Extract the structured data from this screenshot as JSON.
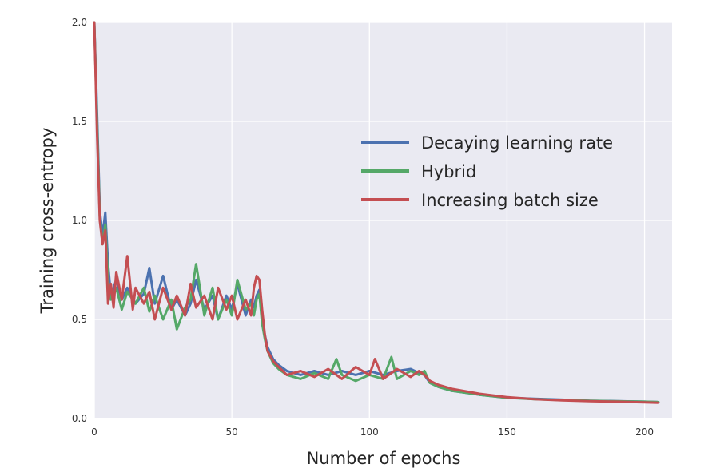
{
  "chart_data": {
    "type": "line",
    "title": "",
    "xlabel": "Number of epochs",
    "ylabel": "Training cross-entropy",
    "xlim": [
      0,
      210
    ],
    "ylim": [
      0.0,
      2.0
    ],
    "xticks": [
      0,
      50,
      100,
      150,
      200
    ],
    "yticks": [
      0.0,
      0.5,
      1.0,
      1.5,
      2.0
    ],
    "xtick_labels": [
      "0",
      "50",
      "100",
      "150",
      "200"
    ],
    "ytick_labels": [
      "0.0",
      "0.5",
      "1.0",
      "1.5",
      "2.0"
    ],
    "grid": true,
    "legend": "center-right",
    "series": [
      {
        "name": "Decaying learning rate",
        "color": "#4c72b0",
        "x": [
          0,
          1,
          2,
          3,
          4,
          5,
          6,
          8,
          10,
          12,
          15,
          18,
          20,
          22,
          25,
          28,
          30,
          33,
          35,
          37,
          40,
          43,
          45,
          48,
          50,
          52,
          55,
          57,
          58,
          59,
          60,
          61,
          62,
          63,
          65,
          67,
          70,
          75,
          80,
          85,
          90,
          95,
          100,
          105,
          110,
          115,
          118,
          120,
          122,
          125,
          130,
          140,
          150,
          160,
          170,
          180,
          190,
          200,
          205
        ],
        "y": [
          2.0,
          1.55,
          1.05,
          0.92,
          1.04,
          0.78,
          0.62,
          0.7,
          0.6,
          0.66,
          0.58,
          0.63,
          0.76,
          0.58,
          0.72,
          0.55,
          0.6,
          0.52,
          0.58,
          0.7,
          0.55,
          0.62,
          0.5,
          0.62,
          0.55,
          0.68,
          0.52,
          0.6,
          0.56,
          0.62,
          0.65,
          0.5,
          0.42,
          0.36,
          0.3,
          0.27,
          0.24,
          0.22,
          0.24,
          0.22,
          0.24,
          0.22,
          0.24,
          0.22,
          0.24,
          0.25,
          0.23,
          0.22,
          0.18,
          0.16,
          0.14,
          0.12,
          0.105,
          0.1,
          0.095,
          0.09,
          0.088,
          0.085,
          0.083
        ]
      },
      {
        "name": "Hybrid",
        "color": "#55a868",
        "x": [
          0,
          1,
          2,
          3,
          4,
          5,
          6,
          8,
          10,
          12,
          15,
          18,
          20,
          22,
          25,
          28,
          30,
          33,
          35,
          37,
          40,
          43,
          45,
          48,
          50,
          52,
          55,
          57,
          58,
          59,
          60,
          61,
          62,
          63,
          65,
          67,
          70,
          75,
          80,
          85,
          88,
          90,
          95,
          100,
          105,
          108,
          110,
          115,
          118,
          120,
          122,
          125,
          130,
          140,
          150,
          160,
          170,
          180,
          190,
          200,
          205
        ],
        "y": [
          2.0,
          1.5,
          1.02,
          0.88,
          0.98,
          0.7,
          0.6,
          0.66,
          0.55,
          0.64,
          0.58,
          0.66,
          0.54,
          0.62,
          0.5,
          0.6,
          0.45,
          0.56,
          0.6,
          0.78,
          0.52,
          0.66,
          0.5,
          0.6,
          0.52,
          0.7,
          0.55,
          0.58,
          0.52,
          0.6,
          0.63,
          0.48,
          0.4,
          0.34,
          0.28,
          0.25,
          0.22,
          0.2,
          0.23,
          0.2,
          0.3,
          0.22,
          0.19,
          0.22,
          0.2,
          0.31,
          0.2,
          0.24,
          0.22,
          0.24,
          0.18,
          0.16,
          0.14,
          0.12,
          0.105,
          0.098,
          0.093,
          0.09,
          0.087,
          0.085,
          0.083
        ]
      },
      {
        "name": "Increasing batch size",
        "color": "#c44e52",
        "x": [
          0,
          1,
          2,
          3,
          4,
          5,
          6,
          7,
          8,
          10,
          12,
          14,
          15,
          18,
          20,
          22,
          25,
          28,
          30,
          33,
          35,
          37,
          40,
          43,
          45,
          48,
          50,
          52,
          55,
          57,
          58,
          59,
          60,
          61,
          62,
          63,
          65,
          67,
          70,
          75,
          80,
          85,
          90,
          95,
          100,
          102,
          105,
          110,
          115,
          118,
          120,
          122,
          125,
          130,
          140,
          150,
          160,
          170,
          180,
          190,
          200,
          205
        ],
        "y": [
          2.0,
          1.45,
          1.0,
          0.88,
          0.95,
          0.58,
          0.68,
          0.56,
          0.74,
          0.6,
          0.82,
          0.55,
          0.66,
          0.58,
          0.64,
          0.5,
          0.66,
          0.55,
          0.62,
          0.52,
          0.68,
          0.56,
          0.62,
          0.5,
          0.66,
          0.55,
          0.62,
          0.5,
          0.6,
          0.52,
          0.66,
          0.72,
          0.7,
          0.55,
          0.42,
          0.34,
          0.29,
          0.26,
          0.22,
          0.24,
          0.21,
          0.25,
          0.2,
          0.26,
          0.22,
          0.3,
          0.2,
          0.25,
          0.21,
          0.24,
          0.22,
          0.19,
          0.17,
          0.15,
          0.125,
          0.108,
          0.098,
          0.092,
          0.088,
          0.085,
          0.082,
          0.08
        ]
      }
    ]
  }
}
